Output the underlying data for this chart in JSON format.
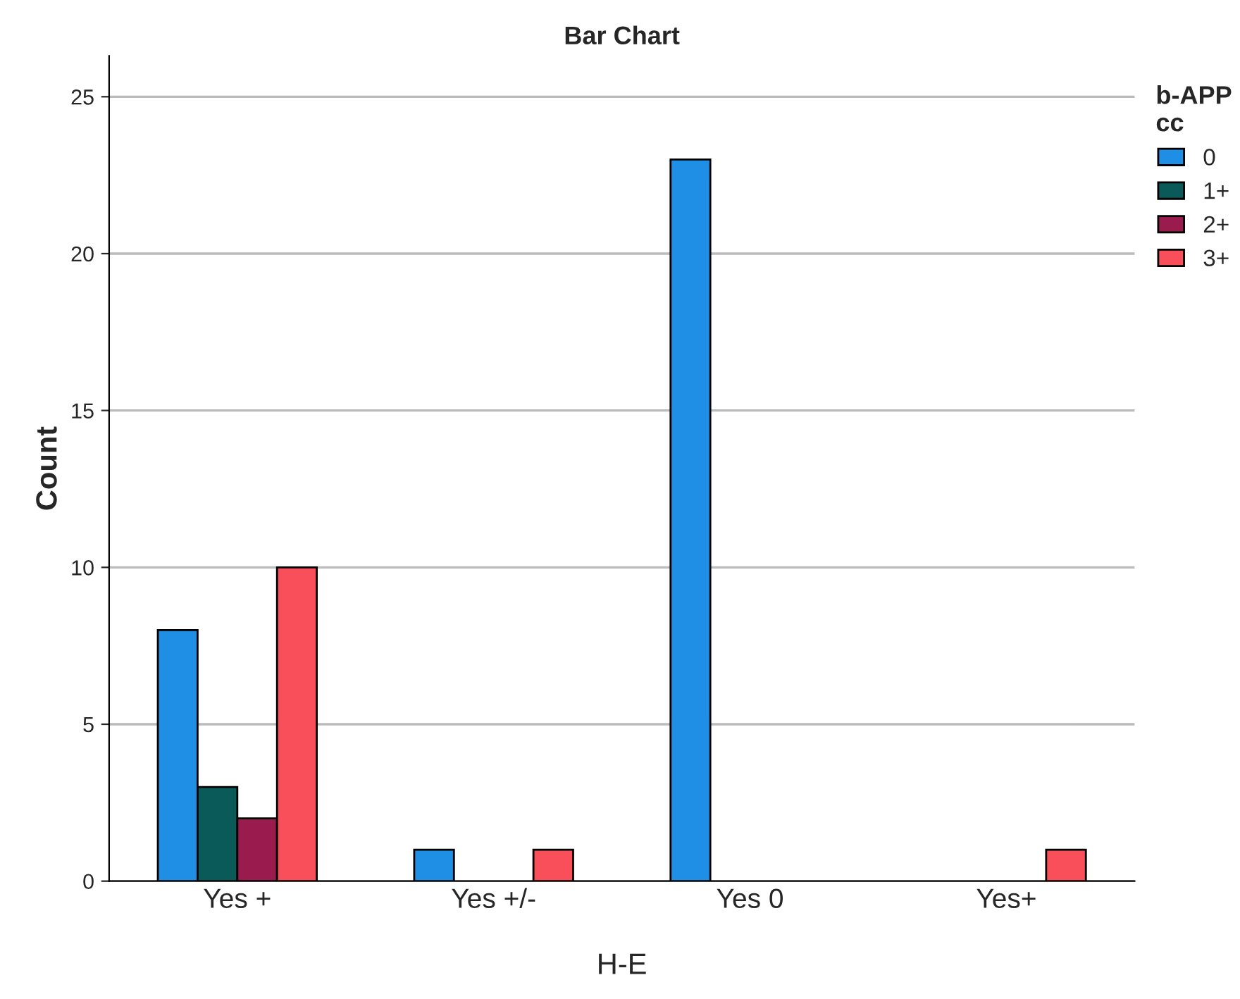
{
  "chart_data": {
    "type": "bar",
    "title": "Bar Chart",
    "xlabel": "H-E",
    "ylabel": "Count",
    "legend_title": "b-APP\ncc",
    "categories": [
      "Yes +",
      "Yes +/-",
      "Yes 0",
      "Yes+"
    ],
    "series": [
      {
        "name": "0",
        "color": "#1f8fe5",
        "values": [
          8,
          1,
          23,
          null
        ]
      },
      {
        "name": "1+",
        "color": "#0b5a5a",
        "values": [
          3,
          null,
          null,
          null
        ]
      },
      {
        "name": "2+",
        "color": "#9a1b4e",
        "values": [
          2,
          null,
          null,
          null
        ]
      },
      {
        "name": "3+",
        "color": "#f84f5a",
        "values": [
          10,
          1,
          null,
          1
        ]
      }
    ],
    "ylim": [
      0,
      26.3
    ],
    "yticks": [
      0,
      5,
      10,
      15,
      20,
      25
    ],
    "grid": "y",
    "legend": "top right"
  }
}
